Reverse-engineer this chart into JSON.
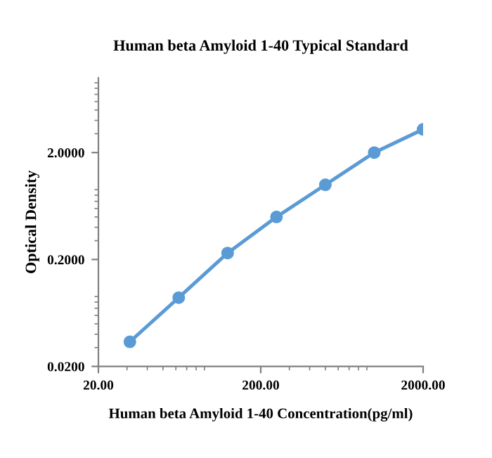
{
  "chart_data": {
    "type": "line",
    "title": "Human beta Amyloid 1-40 Typical Standard",
    "xlabel": "Human beta Amyloid 1-40 Concentration(pg/ml)",
    "ylabel": "Optical Density",
    "log": "xy",
    "xlim": [
      20,
      2000
    ],
    "ylim": [
      0.02,
      10
    ],
    "xticks": [
      {
        "value": 20,
        "label": "20.00"
      },
      {
        "value": 200,
        "label": "200.00"
      },
      {
        "value": 2000,
        "label": "2000.00"
      }
    ],
    "yticks": [
      {
        "value": 0.02,
        "label": "0.0200"
      },
      {
        "value": 0.2,
        "label": "0.2000"
      },
      {
        "value": 2,
        "label": "2.0000"
      }
    ],
    "grid": false,
    "marker": "circle",
    "line_style": "solid",
    "x": [
      31.25,
      62.5,
      125,
      250,
      500,
      1000,
      2000
    ],
    "series": [
      {
        "color": "#5b9bd5",
        "values": [
          0.034,
          0.088,
          0.23,
          0.5,
          1.0,
          2.0,
          3.3
        ]
      }
    ]
  }
}
